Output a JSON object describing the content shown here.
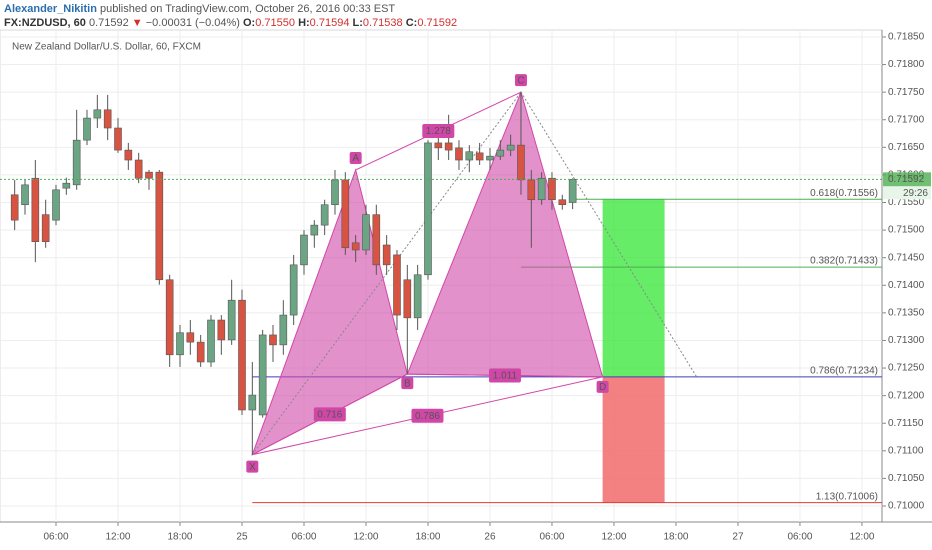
{
  "header": {
    "author": "Alexander_Nikitin",
    "published": "published on TradingView.com, October 26, 2016 00:33 EST",
    "symbol": "FX:NZDUSD, 60",
    "last": "0.71592",
    "arrow": "▼",
    "change": "−0.00031 (−0.04%)",
    "ohlc": [
      {
        "key": "O:",
        "value": "0.71550"
      },
      {
        "key": "H:",
        "value": "0.71594"
      },
      {
        "key": "L:",
        "value": "0.71538"
      },
      {
        "key": "C:",
        "value": "0.71592"
      }
    ]
  },
  "chart_data": {
    "type": "candlestick",
    "title": "New Zealand Dollar/U.S. Dollar, 60, FXCM",
    "x": [
      2,
      3,
      4,
      5,
      6,
      7,
      8,
      9,
      10,
      11,
      12,
      13,
      14,
      15,
      16,
      17,
      18,
      19,
      20,
      21,
      22,
      23,
      24,
      25,
      26,
      27,
      28,
      29,
      30,
      31,
      32,
      33,
      34,
      35,
      36,
      37,
      38,
      39,
      40,
      41,
      42,
      43,
      44,
      45,
      46,
      47,
      48,
      49,
      50,
      51,
      52,
      53,
      54,
      55,
      56
    ],
    "open": [
      0.71564,
      0.71546,
      0.71594,
      0.71528,
      0.71518,
      0.71576,
      0.71582,
      0.71663,
      0.71703,
      0.71718,
      0.71685,
      0.71645,
      0.71627,
      0.71605,
      0.71605,
      0.7141,
      0.71274,
      0.71314,
      0.71297,
      0.71261,
      0.71337,
      0.71301,
      0.71373,
      0.71174,
      0.71165,
      0.7131,
      0.71292,
      0.71346,
      0.71437,
      0.71491,
      0.71509,
      0.71546,
      0.71591,
      0.71477,
      0.71464,
      0.71528,
      0.71473,
      0.71455,
      0.7141,
      0.71341,
      0.71419,
      0.71658,
      0.71658,
      0.71649,
      0.71627,
      0.7164,
      0.71627,
      0.71634,
      0.71645,
      0.71654,
      0.71591,
      0.71555,
      0.71594,
      0.71555,
      0.7155
    ],
    "high": [
      0.71591,
      0.71591,
      0.71627,
      0.71555,
      0.71582,
      0.71595,
      0.71718,
      0.71718,
      0.71745,
      0.71745,
      0.71703,
      0.71658,
      0.7164,
      0.71609,
      0.71609,
      0.71419,
      0.71328,
      0.71337,
      0.7131,
      0.71346,
      0.71346,
      0.7141,
      0.71392,
      0.71261,
      0.71319,
      0.71328,
      0.71373,
      0.71455,
      0.715,
      0.71518,
      0.71555,
      0.71609,
      0.71605,
      0.71491,
      0.71546,
      0.71546,
      0.71491,
      0.71464,
      0.71437,
      0.71437,
      0.71663,
      0.71673,
      0.71709,
      0.71663,
      0.71654,
      0.71658,
      0.71649,
      0.71663,
      0.71673,
      0.7175,
      0.71609,
      0.71605,
      0.71605,
      0.71564,
      0.71594
    ],
    "low": [
      0.715,
      0.71528,
      0.71442,
      0.71468,
      0.71509,
      0.71564,
      0.71573,
      0.71654,
      0.71685,
      0.71663,
      0.7164,
      0.71609,
      0.71585,
      0.71573,
      0.71401,
      0.71252,
      0.71252,
      0.71274,
      0.71252,
      0.71252,
      0.71274,
      0.71292,
      0.71165,
      0.71093,
      0.7116,
      0.71261,
      0.71274,
      0.71328,
      0.71419,
      0.71468,
      0.71491,
      0.71528,
      0.71455,
      0.71442,
      0.71455,
      0.71419,
      0.71419,
      0.71319,
      0.71239,
      0.71319,
      0.7141,
      0.71627,
      0.71627,
      0.71609,
      0.71605,
      0.71618,
      0.71609,
      0.71627,
      0.71634,
      0.71564,
      0.71468,
      0.71546,
      0.71537,
      0.71537,
      0.71538
    ],
    "close": [
      0.71518,
      0.71582,
      0.71479,
      0.71479,
      0.71573,
      0.71585,
      0.71663,
      0.71703,
      0.71718,
      0.71685,
      0.71645,
      0.71627,
      0.71594,
      0.71594,
      0.7141,
      0.71274,
      0.71314,
      0.71297,
      0.71261,
      0.71337,
      0.71301,
      0.71373,
      0.71174,
      0.71201,
      0.7131,
      0.71292,
      0.71346,
      0.71437,
      0.71491,
      0.71509,
      0.71546,
      0.71591,
      0.71468,
      0.71464,
      0.71528,
      0.71437,
      0.71437,
      0.71346,
      0.71341,
      0.71419,
      0.71658,
      0.71649,
      0.71645,
      0.71627,
      0.71642,
      0.71627,
      0.71634,
      0.71645,
      0.71654,
      0.71591,
      0.71555,
      0.71594,
      0.71555,
      0.71546,
      0.71592
    ],
    "up_color": "#6ba583",
    "down_color": "#d75442",
    "xlim": [
      0.58,
      85.94
    ],
    "ylim": [
      0.70971,
      0.71859
    ],
    "xticks": [
      {
        "value": 6,
        "label": "06:00"
      },
      {
        "value": 12,
        "label": "12:00"
      },
      {
        "value": 18,
        "label": "18:00"
      },
      {
        "value": 24,
        "label": "25"
      },
      {
        "value": 30,
        "label": "06:00"
      },
      {
        "value": 36,
        "label": "12:00"
      },
      {
        "value": 42,
        "label": "18:00"
      },
      {
        "value": 48,
        "label": "26"
      },
      {
        "value": 54,
        "label": "06:00"
      },
      {
        "value": 60,
        "label": "12:00"
      },
      {
        "value": 66,
        "label": "18:00"
      },
      {
        "value": 72,
        "label": "27"
      },
      {
        "value": 78,
        "label": "06:00"
      },
      {
        "value": 84,
        "label": "12:00"
      }
    ],
    "yticks": [
      {
        "value": 0.71,
        "label": "0.71000"
      },
      {
        "value": 0.7105,
        "label": "0.71050"
      },
      {
        "value": 0.711,
        "label": "0.71100"
      },
      {
        "value": 0.7115,
        "label": "0.71150"
      },
      {
        "value": 0.712,
        "label": "0.71200"
      },
      {
        "value": 0.7125,
        "label": "0.71250"
      },
      {
        "value": 0.713,
        "label": "0.71300"
      },
      {
        "value": 0.7135,
        "label": "0.71350"
      },
      {
        "value": 0.714,
        "label": "0.71400"
      },
      {
        "value": 0.7145,
        "label": "0.71450"
      },
      {
        "value": 0.715,
        "label": "0.71500"
      },
      {
        "value": 0.7155,
        "label": "0.71550"
      },
      {
        "value": 0.716,
        "label": "0.71600"
      },
      {
        "value": 0.7165,
        "label": "0.71650"
      },
      {
        "value": 0.717,
        "label": "0.71700"
      },
      {
        "value": 0.7175,
        "label": "0.71750"
      },
      {
        "value": 0.718,
        "label": "0.71800"
      },
      {
        "value": 0.7185,
        "label": "0.71850"
      }
    ],
    "grid": true,
    "last_price": 0.71592,
    "countdown": "29:26",
    "last_price_color": "#4caf50",
    "pattern": {
      "color": "#d147a8",
      "points": [
        {
          "label": "X",
          "x": 25,
          "y": 0.71093
        },
        {
          "label": "A",
          "x": 35,
          "y": 0.71609
        },
        {
          "label": "B",
          "x": 40,
          "y": 0.71239
        },
        {
          "label": "C",
          "x": 51,
          "y": 0.7175
        },
        {
          "label": "D",
          "x": 58.9,
          "y": 0.71234
        }
      ],
      "ratios": [
        "0.716",
        "1.278",
        "1.011",
        "0.786"
      ]
    },
    "levels": [
      {
        "label": "0.618(0.71556)",
        "value": 0.71556,
        "color": "#4caf50"
      },
      {
        "label": "0.382(0.71433)",
        "value": 0.71433,
        "color": "#4caf50"
      },
      {
        "label": "0.786(0.71234)",
        "value": 0.71234,
        "color": "#3f3fbf"
      },
      {
        "label": "1.13(0.71006)",
        "value": 0.71006,
        "color": "#e53935"
      }
    ],
    "target_color": "#33e633",
    "stop_color": "#f26b6b"
  }
}
